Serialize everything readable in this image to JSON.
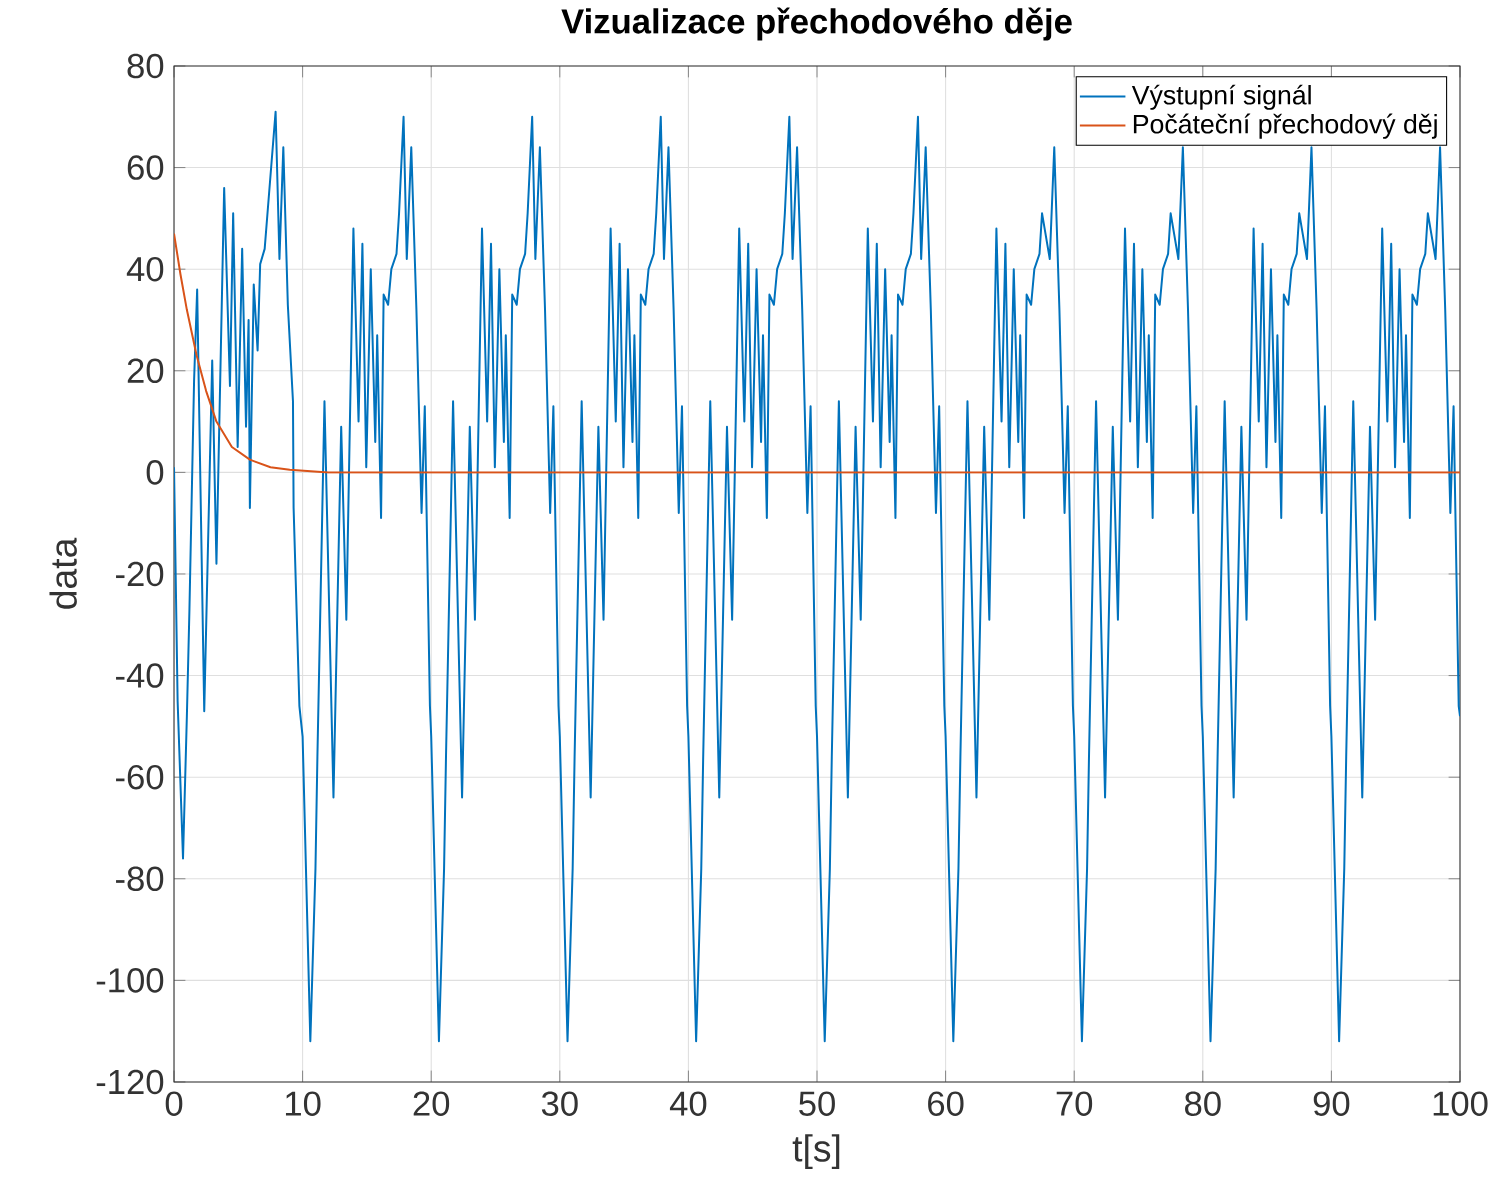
{
  "chart_data": {
    "type": "line",
    "title": "Vizualizace přechodového děje",
    "xlabel": "t[s]",
    "ylabel": "data",
    "xlim": [
      0,
      100
    ],
    "ylim": [
      -120,
      80
    ],
    "xticks": [
      0,
      10,
      20,
      30,
      40,
      50,
      60,
      70,
      80,
      90,
      100
    ],
    "yticks": [
      -120,
      -100,
      -80,
      -60,
      -40,
      -20,
      0,
      20,
      40,
      60,
      80
    ],
    "grid": true,
    "legend": "top right",
    "series": [
      {
        "name": "Výstupní signál",
        "color": "#0072bd",
        "x": [
          0,
          0.28,
          0.7,
          1.0,
          1.2,
          1.56,
          1.8,
          2.35,
          2.97,
          3.3,
          3.9,
          4.35,
          4.6,
          4.95,
          5.3,
          5.6,
          5.8,
          5.9,
          6.2,
          6.5,
          6.7,
          7.05,
          7.3,
          7.9,
          8.2,
          8.5,
          8.85,
          9.25,
          9.3,
          9.75,
          10,
          10.6,
          11,
          11.15,
          11.7,
          12.4,
          13,
          13.4,
          13.95,
          14.35,
          14.65,
          14.95,
          15.3,
          15.65,
          15.8,
          16.1,
          16.3,
          16.65,
          16.9,
          17.3,
          17.5,
          17.85,
          18.1,
          18.45,
          18.85,
          19.25,
          19.5,
          19.9,
          20,
          20.6,
          21,
          21.15,
          21.7,
          22.4,
          23,
          23.4,
          23.95,
          24.35,
          24.65,
          24.95,
          25.3,
          25.65,
          25.8,
          26.1,
          26.3,
          26.65,
          26.9,
          27.3,
          27.5,
          27.85,
          28.1,
          28.45,
          28.85,
          29.25,
          29.5,
          29.9,
          30,
          30.6,
          31,
          31.15,
          31.7,
          32.4,
          33,
          33.4,
          33.95,
          34.35,
          34.65,
          34.95,
          35.3,
          35.65,
          35.8,
          36.1,
          36.3,
          36.65,
          36.9,
          37.3,
          37.5,
          37.85,
          38.1,
          38.45,
          38.85,
          39.25,
          39.5,
          39.9,
          40,
          40.6,
          41,
          41.15,
          41.7,
          42.4,
          43,
          43.4,
          43.95,
          44.35,
          44.65,
          44.95,
          45.3,
          45.65,
          45.8,
          46.1,
          46.3,
          46.65,
          46.9,
          47.3,
          47.5,
          47.85,
          48.1,
          48.45,
          48.85,
          49.25,
          49.5,
          49.9,
          50,
          50.6,
          51,
          51.15,
          51.7,
          52.4,
          53,
          53.4,
          53.95,
          54.35,
          54.65,
          54.95,
          55.3,
          55.65,
          55.8,
          56.1,
          56.3,
          56.65,
          56.9,
          57.3,
          57.5,
          57.85,
          58.1,
          58.45,
          58.85,
          59.25,
          59.5,
          59.9,
          60,
          60.6,
          61,
          61.15,
          61.7,
          62.4,
          63,
          63.4,
          63.95,
          64.35,
          64.65,
          64.95,
          65.3,
          65.65,
          65.8,
          66.1,
          66.3,
          66.65,
          66.9,
          67.3,
          67.5,
          67.85,
          68.1,
          68.45,
          68.85,
          69.25,
          69.5,
          69.9,
          70,
          70.6,
          71,
          71.15,
          71.7,
          72.4,
          73,
          73.4,
          73.95,
          74.35,
          74.65,
          74.95,
          75.3,
          75.65,
          75.8,
          76.1,
          76.3,
          76.65,
          76.9,
          77.3,
          77.5,
          77.85,
          78.1,
          78.45,
          78.85,
          79.25,
          79.5,
          79.9,
          80,
          80.6,
          81,
          81.15,
          81.7,
          82.4,
          83,
          83.4,
          83.95,
          84.35,
          84.65,
          84.95,
          85.3,
          85.65,
          85.8,
          86.1,
          86.3,
          86.65,
          86.9,
          87.3,
          87.5,
          87.85,
          88.1,
          88.45,
          88.85,
          89.25,
          89.5,
          89.9,
          90,
          90.6,
          91,
          91.15,
          91.7,
          92.4,
          93,
          93.4,
          93.95,
          94.35,
          94.65,
          94.95,
          95.3,
          95.65,
          95.8,
          96.1,
          96.3,
          96.65,
          96.9,
          97.3,
          97.5,
          97.85,
          98.1,
          98.45,
          98.85,
          99.25,
          99.5,
          99.9,
          100
        ],
        "values": [
          1,
          -45,
          -76,
          -48,
          -27,
          18,
          36,
          -47,
          22,
          -18,
          56,
          17,
          51,
          5,
          44,
          9,
          30,
          -7,
          37,
          24,
          41,
          44,
          52,
          71,
          42,
          64,
          33,
          14,
          -7,
          -46,
          -52,
          -112,
          -78,
          -56,
          14,
          -64,
          9,
          -29,
          48,
          10,
          45,
          1,
          40,
          6,
          27,
          -9,
          35,
          33,
          40,
          43,
          51,
          70,
          42,
          64,
          32,
          -8,
          13,
          -46,
          -52,
          -112,
          -78,
          -56,
          14,
          -64,
          9,
          -29,
          48,
          10,
          45,
          1,
          40,
          6,
          27,
          -9,
          35,
          33,
          40,
          43,
          51,
          70,
          42,
          64,
          32,
          -8,
          13,
          -46,
          -52,
          -112,
          -78,
          -56,
          14,
          -64,
          9,
          -29,
          48,
          10,
          45,
          1,
          40,
          6,
          27,
          -9,
          35,
          33,
          40,
          43,
          51,
          70,
          42,
          64,
          32,
          -8,
          13,
          -46,
          -52,
          -112,
          -78,
          -56,
          14,
          -64,
          9,
          -29,
          48,
          10,
          45,
          1,
          40,
          6,
          27,
          -9,
          35,
          33,
          40,
          43,
          51,
          70,
          42,
          64,
          32,
          -8,
          13,
          -46,
          -52,
          -112,
          -78,
          -56,
          14,
          -64,
          9,
          -29,
          48,
          10,
          45,
          1,
          40,
          6,
          27,
          -9,
          35,
          33,
          40,
          43,
          51,
          70,
          42,
          64,
          32,
          -8,
          13,
          -46,
          -52,
          -112,
          -78,
          -56,
          14,
          -64,
          9,
          -29,
          48,
          10,
          45,
          1,
          40,
          6,
          27,
          -9,
          35,
          33,
          40,
          43,
          51,
          null,
          42,
          64,
          32,
          -8,
          13,
          -46,
          -52,
          -112,
          -78,
          -56,
          14,
          -64,
          9,
          -29,
          48,
          10,
          45,
          1,
          40,
          6,
          27,
          -9,
          35,
          33,
          40,
          43,
          51,
          null,
          42,
          64,
          32,
          -8,
          13,
          -46,
          -52,
          -112,
          -78,
          -56,
          14,
          -64,
          9,
          -29,
          48,
          10,
          45,
          1,
          40,
          6,
          27,
          -9,
          35,
          33,
          40,
          43,
          51,
          null,
          42,
          64,
          32,
          -8,
          13,
          -46,
          -52,
          -112,
          -78,
          -56,
          14,
          -64,
          9,
          -29,
          48,
          10,
          45,
          1,
          40,
          6,
          27,
          -9,
          35,
          33,
          40,
          43,
          51,
          null,
          42,
          64,
          32,
          -8,
          13,
          -46,
          -48
        ]
      },
      {
        "name": "Počáteční přechodový děj",
        "color": "#d95319",
        "x": [
          0,
          0.5,
          1,
          1.76,
          2.5,
          3.3,
          4.5,
          5.9,
          7.5,
          9,
          12,
          100
        ],
        "values": [
          47,
          39,
          32,
          23,
          16,
          10,
          5,
          2.5,
          1,
          0.5,
          0,
          0
        ]
      }
    ]
  }
}
